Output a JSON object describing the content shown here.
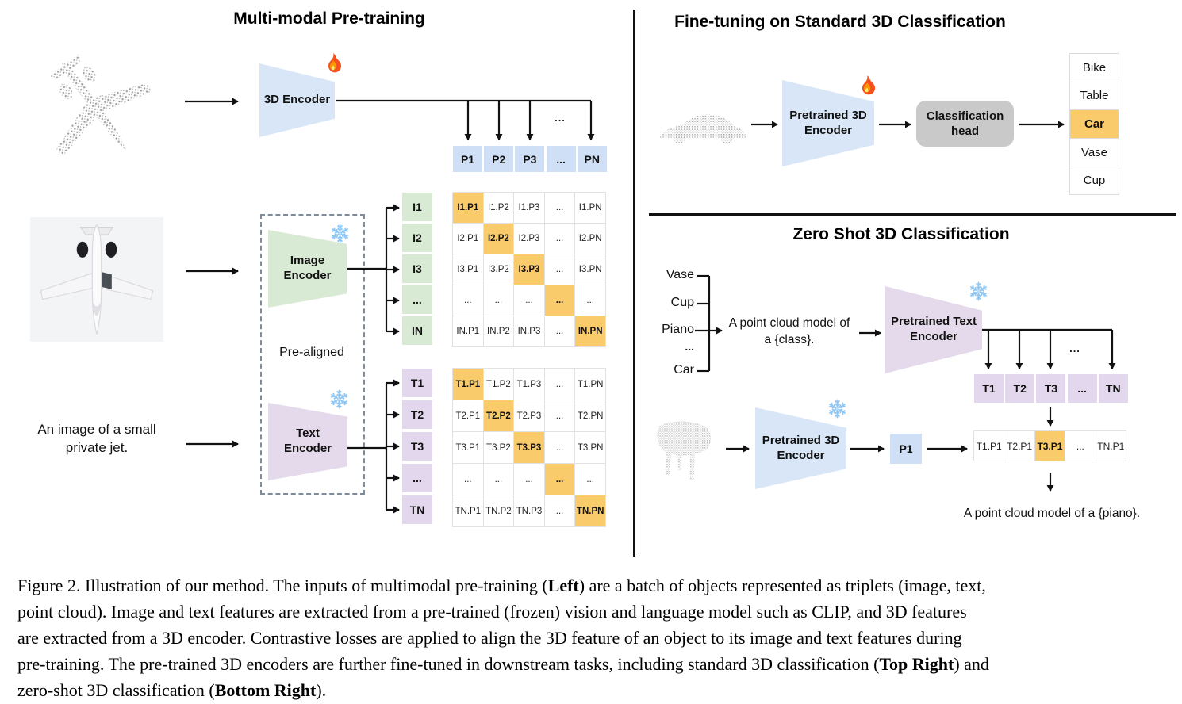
{
  "colors": {
    "highlight": "#f9cb6b",
    "blue_cell": "#cfe0f6",
    "blue_trapezoid": "#d9e6f7",
    "green": "#d9ead4",
    "lavender_trapezoid": "#e5d9ec",
    "lavender_cell": "#e2d7ec",
    "head_gray": "#c9c9c9"
  },
  "icons": {
    "trainable": "fire-icon",
    "frozen": "snowflake-icon"
  },
  "left": {
    "title": "Multi-modal Pre-training",
    "encoder_3d_label": "3D Encoder",
    "image_encoder": {
      "line1": "Image",
      "line2": "Encoder"
    },
    "text_encoder": {
      "line1": "Text",
      "line2": "Encoder"
    },
    "pre_aligned": "Pre-aligned",
    "input_text": {
      "line1": "An image of a small",
      "line2": "private jet."
    },
    "p_row": [
      "P1",
      "P2",
      "P3",
      "...",
      "PN"
    ],
    "p_ellipsis": "...",
    "image_rows": [
      "I1",
      "I2",
      "I3",
      "...",
      "IN"
    ],
    "text_rows": [
      "T1",
      "T2",
      "T3",
      "...",
      "TN"
    ],
    "image_matrix": [
      [
        "I1.P1",
        "I1.P2",
        "I1.P3",
        "...",
        "I1.PN"
      ],
      [
        "I2.P1",
        "I2.P2",
        "I2.P3",
        "...",
        "I2.PN"
      ],
      [
        "I3.P1",
        "I3.P2",
        "I3.P3",
        "...",
        "I3.PN"
      ],
      [
        "...",
        "...",
        "...",
        "...",
        "..."
      ],
      [
        "IN.P1",
        "IN.P2",
        "IN.P3",
        "...",
        "IN.PN"
      ]
    ],
    "text_matrix": [
      [
        "T1.P1",
        "T1.P2",
        "T1.P3",
        "...",
        "T1.PN"
      ],
      [
        "T2.P1",
        "T2.P2",
        "T2.P3",
        "...",
        "T2.PN"
      ],
      [
        "T3.P1",
        "T3.P2",
        "T3.P3",
        "...",
        "T3.PN"
      ],
      [
        "...",
        "...",
        "...",
        "...",
        "..."
      ],
      [
        "TN.P1",
        "TN.P2",
        "TN.P3",
        "...",
        "TN.PN"
      ]
    ]
  },
  "top_right": {
    "title": "Fine-tuning on Standard 3D Classification",
    "encoder": {
      "line1": "Pretrained 3D",
      "line2": "Encoder"
    },
    "head": {
      "line1": "Classification",
      "line2": "head"
    },
    "classes": [
      {
        "label": "Bike",
        "highlight": false
      },
      {
        "label": "Table",
        "highlight": false
      },
      {
        "label": "Car",
        "highlight": true
      },
      {
        "label": "Vase",
        "highlight": false
      },
      {
        "label": "Cup",
        "highlight": false
      }
    ]
  },
  "bottom_right": {
    "title": "Zero Shot 3D Classification",
    "candidate_classes": [
      "Vase",
      "Cup",
      "Piano",
      "...",
      "Car"
    ],
    "prompt": {
      "line1": "A point cloud model of",
      "line2": "a {class}."
    },
    "text_encoder": {
      "line1": "Pretrained Text",
      "line2": "Encoder"
    },
    "t_row": [
      "T1",
      "T2",
      "T3",
      "...",
      "TN"
    ],
    "t_ellipsis": "...",
    "encoder_3d": {
      "line1": "Pretrained 3D",
      "line2": "Encoder"
    },
    "p1_label": "P1",
    "result_row": [
      {
        "label": "T1.P1",
        "highlight": false
      },
      {
        "label": "T2.P1",
        "highlight": false
      },
      {
        "label": "T3.P1",
        "highlight": true
      },
      {
        "label": "...",
        "highlight": false
      },
      {
        "label": "TN.P1",
        "highlight": false
      }
    ],
    "result_caption": "A point cloud model of a {piano}."
  },
  "caption": {
    "lines": [
      [
        {
          "text": "Figure 2. Illustration of our method. The inputs of multimodal pre-training ("
        },
        {
          "text": "Left",
          "bold": true
        },
        {
          "text": ") are a batch of objects represented as triplets (image, text,"
        }
      ],
      [
        {
          "text": "point cloud). Image and text features are extracted from a pre-trained (frozen) vision and language model such as CLIP, and 3D features"
        }
      ],
      [
        {
          "text": "are extracted from a 3D encoder. Contrastive losses are applied to align the 3D feature of an object to its image and text features during"
        }
      ],
      [
        {
          "text": "pre-training. The pre-trained 3D encoders are further fine-tuned in downstream tasks, including standard 3D classification ("
        },
        {
          "text": "Top Right",
          "bold": true
        },
        {
          "text": ") and"
        }
      ],
      [
        {
          "text": "zero-shot 3D classification ("
        },
        {
          "text": "Bottom Right",
          "bold": true
        },
        {
          "text": ")."
        }
      ]
    ]
  }
}
